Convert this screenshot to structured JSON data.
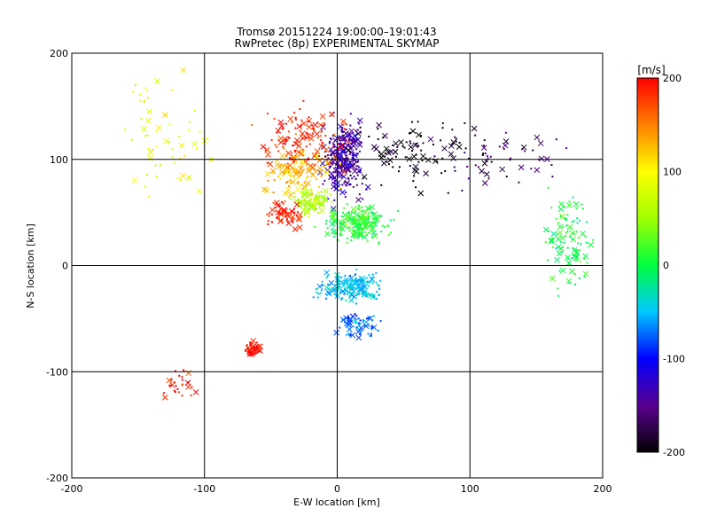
{
  "title_line1": "Tromsø 20151224 19:00:00–19:01:43",
  "title_line2": "RwPretec (8p) EXPERIMENTAL SKYMAP",
  "chart_data": {
    "type": "scatter",
    "title": "Tromsø 20151224 19:00:00–19:01:43",
    "subtitle": "RwPretec (8p) EXPERIMENTAL SKYMAP",
    "xlabel": "E-W location [km]",
    "ylabel": "N-S location [km]",
    "xlim": [
      -200,
      200
    ],
    "ylim": [
      -200,
      200
    ],
    "xticks": [
      "-200",
      "-100",
      "0",
      "100",
      "200"
    ],
    "yticks": [
      "-200",
      "-100",
      "0",
      "100",
      "200"
    ],
    "grid": true,
    "markers": [
      "dot",
      "x"
    ],
    "colorbar": {
      "label": "[m/s]",
      "min": -200,
      "max": 200,
      "ticks": [
        "-200",
        "-100",
        "0",
        "100",
        "200"
      ],
      "colormap": "rainbow: black-purple-blue-cyan-green-yellow-orange-red"
    },
    "clusters": [
      {
        "center": [
          5,
          100
        ],
        "spread": [
          14,
          35
        ],
        "velocity": -140,
        "count": 260
      },
      {
        "center": [
          -25,
          120
        ],
        "spread": [
          30,
          28
        ],
        "velocity": 185,
        "count": 140
      },
      {
        "center": [
          -30,
          88
        ],
        "spread": [
          22,
          18
        ],
        "velocity": 130,
        "count": 120
      },
      {
        "center": [
          -20,
          60
        ],
        "spread": [
          12,
          12
        ],
        "velocity": 60,
        "count": 90
      },
      {
        "center": [
          -40,
          48
        ],
        "spread": [
          14,
          12
        ],
        "velocity": 190,
        "count": 60
      },
      {
        "center": [
          15,
          40
        ],
        "spread": [
          25,
          16
        ],
        "velocity": 10,
        "count": 200
      },
      {
        "center": [
          10,
          -20
        ],
        "spread": [
          22,
          12
        ],
        "velocity": -50,
        "count": 180
      },
      {
        "center": [
          15,
          -55
        ],
        "spread": [
          14,
          12
        ],
        "velocity": -70,
        "count": 70
      },
      {
        "center": [
          -63,
          -78
        ],
        "spread": [
          6,
          6
        ],
        "velocity": 195,
        "count": 60
      },
      {
        "center": [
          60,
          110
        ],
        "spread": [
          55,
          30
        ],
        "velocity": -195,
        "count": 110
      },
      {
        "center": [
          130,
          100
        ],
        "spread": [
          40,
          25
        ],
        "velocity": -160,
        "count": 45
      },
      {
        "center": [
          175,
          20
        ],
        "spread": [
          18,
          45
        ],
        "velocity": 0,
        "count": 110
      },
      {
        "center": [
          -130,
          120
        ],
        "spread": [
          35,
          60
        ],
        "velocity": 90,
        "count": 60
      },
      {
        "center": [
          -120,
          -110
        ],
        "spread": [
          12,
          15
        ],
        "velocity": 195,
        "count": 30
      }
    ]
  }
}
